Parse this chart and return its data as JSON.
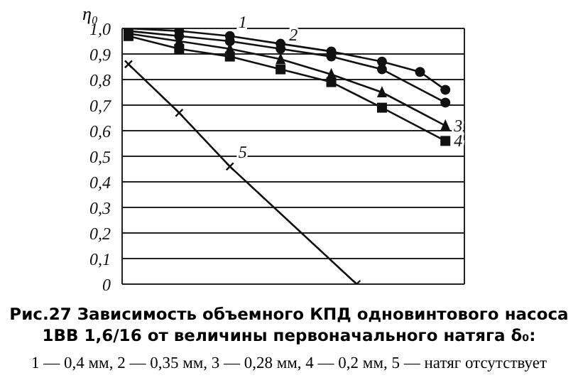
{
  "chart_data": {
    "type": "line",
    "title": "Рис.27 Зависимость объемного КПД одновинтового насоса 1ВВ 1,6/16 от величины первоначального натяга δ₀:",
    "ylabel": "η₀",
    "annotations": [
      "1 — 0,4 мм, 2 — 0,35 мм, 3 — 0,28 мм, 4 — 0,2 мм, 5 — натяг отсутствует"
    ],
    "categories": [
      null,
      null,
      null,
      null,
      null,
      null,
      null,
      null,
      null,
      null,
      null,
      null,
      null,
      null,
      null,
      null,
      null,
      null,
      null,
      null,
      null,
      null,
      null,
      null,
      null,
      null,
      null
    ],
    "series": [
      {
        "name": "1",
        "color": "#111111",
        "marker": "circle",
        "values": [
          1.0,
          null,
          null,
          null,
          0.99,
          null,
          null,
          null,
          0.97,
          null,
          null,
          null,
          0.94,
          null,
          null,
          null,
          0.91,
          null,
          null,
          null,
          0.87,
          null,
          null,
          0.83,
          null,
          0.76,
          null
        ]
      },
      {
        "name": "2",
        "color": "#111111",
        "marker": "circle",
        "values": [
          0.99,
          null,
          null,
          null,
          0.97,
          null,
          null,
          null,
          0.95,
          null,
          null,
          null,
          0.92,
          null,
          null,
          null,
          0.89,
          null,
          null,
          null,
          0.84,
          null,
          null,
          null,
          null,
          0.71,
          null
        ]
      },
      {
        "name": "3",
        "color": "#111111",
        "marker": "triangle",
        "values": [
          0.98,
          null,
          null,
          null,
          0.95,
          null,
          null,
          null,
          0.92,
          null,
          null,
          null,
          0.88,
          null,
          null,
          null,
          0.82,
          null,
          null,
          null,
          0.75,
          null,
          null,
          null,
          null,
          0.62,
          null
        ]
      },
      {
        "name": "4",
        "color": "#111111",
        "marker": "square",
        "values": [
          0.97,
          null,
          null,
          null,
          0.92,
          null,
          null,
          null,
          0.89,
          null,
          null,
          null,
          0.84,
          null,
          null,
          null,
          0.79,
          null,
          null,
          null,
          0.69,
          null,
          null,
          null,
          null,
          0.56,
          null
        ]
      },
      {
        "name": "5",
        "color": "#111111",
        "marker": "cross",
        "values": [
          0.86,
          null,
          null,
          null,
          0.67,
          null,
          null,
          null,
          0.46,
          null,
          null,
          null,
          null,
          null,
          null,
          null,
          null,
          null,
          0,
          null,
          null,
          null,
          null,
          null,
          null,
          null,
          null
        ]
      }
    ],
    "ylim": [
      0,
      1
    ],
    "yticks": [
      {
        "value": 0,
        "label": "0"
      },
      {
        "value": 0.1,
        "label": "0,1"
      },
      {
        "value": 0.2,
        "label": "0,2"
      },
      {
        "value": 0.3,
        "label": "0,3"
      },
      {
        "value": 0.4,
        "label": "0,4"
      },
      {
        "value": 0.5,
        "label": "0,5"
      },
      {
        "value": 0.6,
        "label": "0,6"
      },
      {
        "value": 0.7,
        "label": "0,7"
      },
      {
        "value": 0.8,
        "label": "0,8"
      },
      {
        "value": 0.9,
        "label": "0,9"
      },
      {
        "value": 1,
        "label": "1,0"
      }
    ],
    "grid": true,
    "line_style": "solid"
  }
}
